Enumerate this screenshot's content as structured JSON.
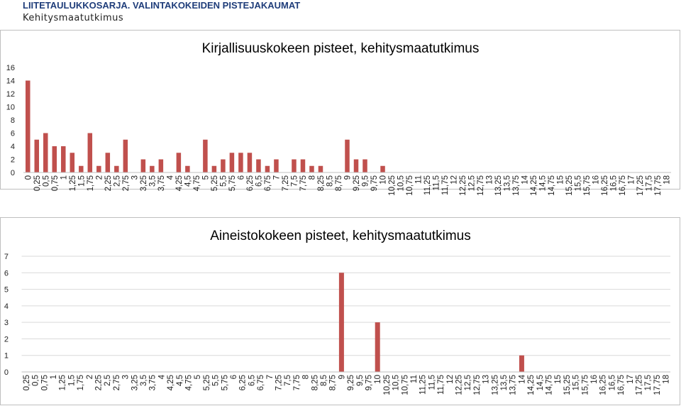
{
  "header": {
    "title": "LIITETAULUKKOSARJA. VALINTAKOKEIDEN PISTEJAKAUMAT",
    "subtitle": "Kehitysmaatutkimus"
  },
  "colors": {
    "bar": "#c0504d",
    "grid": "#d9d9d9",
    "border": "#bfbfbf"
  },
  "chart_data": [
    {
      "type": "bar",
      "title": "Kirjallisuuskokeen pisteet, kehitysmaatutkimus",
      "xlabel": "",
      "ylabel": "",
      "ylim": [
        0,
        16
      ],
      "yticks": [
        0,
        2,
        4,
        6,
        8,
        10,
        12,
        14,
        16
      ],
      "grid": false,
      "categories": [
        "0",
        "0,25",
        "0,5",
        "0,75",
        "1",
        "1,25",
        "1,5",
        "1,75",
        "2",
        "2,25",
        "2,5",
        "2,75",
        "3",
        "3,25",
        "3,5",
        "3,75",
        "4",
        "4,25",
        "4,5",
        "4,75",
        "5",
        "5,25",
        "5,5",
        "5,75",
        "6",
        "6,25",
        "6,5",
        "6,75",
        "7",
        "7,25",
        "7,5",
        "7,75",
        "8",
        "8,25",
        "8,5",
        "8,75",
        "9",
        "9,25",
        "9,5",
        "9,75",
        "10",
        "10,25",
        "10,5",
        "10,75",
        "11",
        "11,25",
        "11,5",
        "11,75",
        "12",
        "12,25",
        "12,5",
        "12,75",
        "13",
        "13,25",
        "13,5",
        "13,75",
        "14",
        "14,25",
        "14,5",
        "14,75",
        "15",
        "15,25",
        "15,5",
        "15,75",
        "16",
        "16,25",
        "16,5",
        "16,75",
        "17",
        "17,25",
        "17,5",
        "17,75",
        "18"
      ],
      "values": [
        14,
        5,
        6,
        4,
        4,
        3,
        1,
        6,
        1,
        3,
        1,
        5,
        0,
        2,
        1,
        2,
        0,
        3,
        1,
        0,
        5,
        1,
        2,
        3,
        3,
        3,
        2,
        1,
        2,
        0,
        2,
        2,
        1,
        1,
        0,
        0,
        5,
        2,
        2,
        0,
        1,
        0,
        0,
        0,
        0,
        0,
        0,
        0,
        0,
        0,
        0,
        0,
        0,
        0,
        0,
        0,
        0,
        0,
        0,
        0,
        0,
        0,
        0,
        0,
        0,
        0,
        0,
        0,
        0,
        0,
        0,
        0,
        0
      ]
    },
    {
      "type": "bar",
      "title": "Aineistokokeen pisteet, kehitysmaatutkimus",
      "xlabel": "",
      "ylabel": "",
      "ylim": [
        0,
        7
      ],
      "yticks": [
        0,
        1,
        2,
        3,
        4,
        5,
        6,
        7
      ],
      "grid": true,
      "categories": [
        "0,25",
        "0,5",
        "0,75",
        "1",
        "1,25",
        "1,5",
        "1,75",
        "2",
        "2,25",
        "2,5",
        "2,75",
        "3",
        "3,25",
        "3,5",
        "3,75",
        "4",
        "4,25",
        "4,5",
        "4,75",
        "5",
        "5,25",
        "5,5",
        "5,75",
        "6",
        "6,25",
        "6,5",
        "6,75",
        "7",
        "7,25",
        "7,5",
        "7,75",
        "8",
        "8,25",
        "8,5",
        "8,75",
        "9",
        "9,25",
        "9,5",
        "9,75",
        "10",
        "10,25",
        "10,5",
        "10,75",
        "11",
        "11,25",
        "11,5",
        "11,75",
        "12",
        "12,25",
        "12,5",
        "12,75",
        "13",
        "13,25",
        "13,5",
        "13,75",
        "14",
        "14,25",
        "14,5",
        "14,75",
        "15",
        "15,25",
        "15,5",
        "15,75",
        "16",
        "16,25",
        "16,5",
        "16,75",
        "17",
        "17,25",
        "17,5",
        "17,75",
        "18"
      ],
      "values": [
        0,
        0,
        0,
        0,
        0,
        0,
        0,
        0,
        0,
        0,
        0,
        0,
        0,
        0,
        0,
        0,
        0,
        0,
        0,
        0,
        0,
        0,
        0,
        0,
        0,
        0,
        0,
        0,
        0,
        0,
        0,
        0,
        0,
        0,
        0,
        6,
        0,
        0,
        0,
        3,
        0,
        0,
        0,
        0,
        0,
        0,
        0,
        0,
        0,
        0,
        0,
        0,
        0,
        0,
        0,
        1,
        0,
        0,
        0,
        0,
        0,
        0,
        0,
        0,
        0,
        0,
        0,
        0,
        0,
        0,
        0,
        0
      ]
    }
  ]
}
